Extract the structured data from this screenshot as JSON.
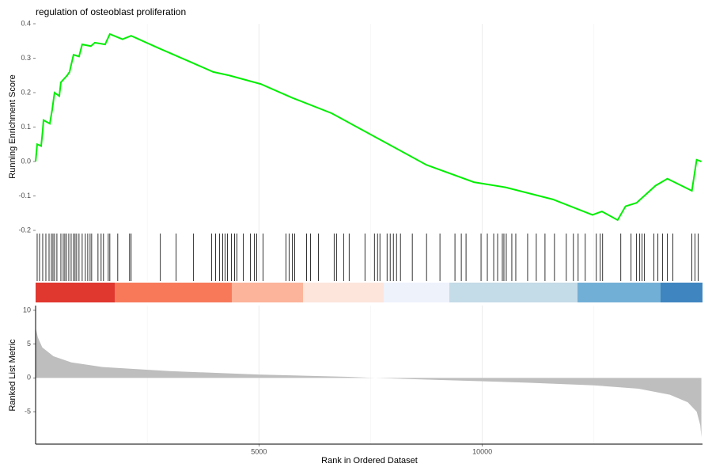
{
  "chart_data": [
    {
      "type": "line",
      "title": "regulation of osteoblast proliferation",
      "y_label": "Running Enrichment Score",
      "color": "#00ee00",
      "x": [
        0,
        35,
        124,
        159,
        177,
        318,
        371,
        424,
        530,
        566,
        707,
        760,
        849,
        972,
        1043,
        1237,
        1326,
        1556,
        1662,
        1945,
        2139,
        2740,
        3448,
        3978,
        4332,
        5039,
        5746,
        6630,
        7691,
        8752,
        9813,
        10520,
        11581,
        12466,
        12677,
        13030,
        13207,
        13454,
        13879,
        14144,
        14692,
        14799,
        14905
      ],
      "y": [
        0,
        0.05,
        0.045,
        0.09,
        0.12,
        0.11,
        0.15,
        0.2,
        0.19,
        0.23,
        0.25,
        0.26,
        0.31,
        0.305,
        0.34,
        0.335,
        0.345,
        0.34,
        0.37,
        0.355,
        0.365,
        0.33,
        0.29,
        0.26,
        0.25,
        0.225,
        0.185,
        0.14,
        0.065,
        -0.01,
        -0.06,
        -0.075,
        -0.11,
        -0.155,
        -0.145,
        -0.17,
        -0.13,
        -0.12,
        -0.07,
        -0.05,
        -0.085,
        0.005,
        0
      ],
      "xlim": [
        0,
        14930
      ],
      "ylim": [
        -0.2,
        0.4
      ],
      "yticks": [
        0.4,
        0.3,
        0.2,
        0.1,
        {
          "value": 0,
          "label": "0.0"
        },
        -0.1,
        -0.2
      ]
    },
    {
      "type": "rug",
      "color": "#000000",
      "x": [
        35,
        88,
        159,
        230,
        301,
        354,
        389,
        424,
        477,
        566,
        619,
        654,
        690,
        743,
        796,
        849,
        884,
        919,
        972,
        1043,
        1114,
        1167,
        1220,
        1255,
        1397,
        1467,
        1520,
        1627,
        1662,
        1839,
        2104,
        2139,
        2793,
        3147,
        3536,
        3943,
        4031,
        4120,
        4190,
        4243,
        4296,
        4385,
        4456,
        4509,
        4650,
        4809,
        4898,
        4951,
        5092,
        5605,
        5676,
        5746,
        5799,
        6064,
        6153,
        6330,
        6683,
        6736,
        6895,
        7019,
        7373,
        7585,
        7655,
        7708,
        7868,
        7938,
        8009,
        8080,
        8168,
        8433,
        8752,
        9052,
        9388,
        9530,
        9636,
        9972,
        10113,
        10255,
        10343,
        10449,
        10484,
        10537,
        10661,
        10750,
        11015,
        11209,
        11404,
        11616,
        11881,
        12040,
        12146,
        12305,
        12553,
        12641,
        12694,
        13101,
        13331,
        13454,
        13525,
        13578,
        13631,
        13843,
        13932,
        14038,
        14144,
        14268,
        14692,
        14763,
        14834
      ],
      "xlim": [
        0,
        14930
      ]
    },
    {
      "type": "area",
      "y_label": "Ranked List Metric",
      "x_label": "Rank in Ordered Dataset",
      "color": "#bebebe",
      "x": [
        0,
        50,
        150,
        400,
        800,
        1500,
        3000,
        5000,
        7000,
        7600,
        9000,
        11000,
        12500,
        13500,
        14200,
        14600,
        14800,
        14880,
        14905
      ],
      "y": [
        7.5,
        6,
        4.5,
        3.2,
        2.3,
        1.6,
        1,
        0.5,
        0.15,
        0,
        -0.3,
        -0.7,
        -1.1,
        -1.6,
        -2.5,
        -3.6,
        -5,
        -7,
        -8.8
      ],
      "xlim": [
        0,
        14930
      ],
      "ylim": [
        -9.8,
        10.7
      ],
      "yticks": [
        10,
        5,
        0,
        -5
      ],
      "xticks": [
        5000,
        10000
      ],
      "x_minor_grid": [
        2500,
        7500,
        12500
      ]
    }
  ]
}
